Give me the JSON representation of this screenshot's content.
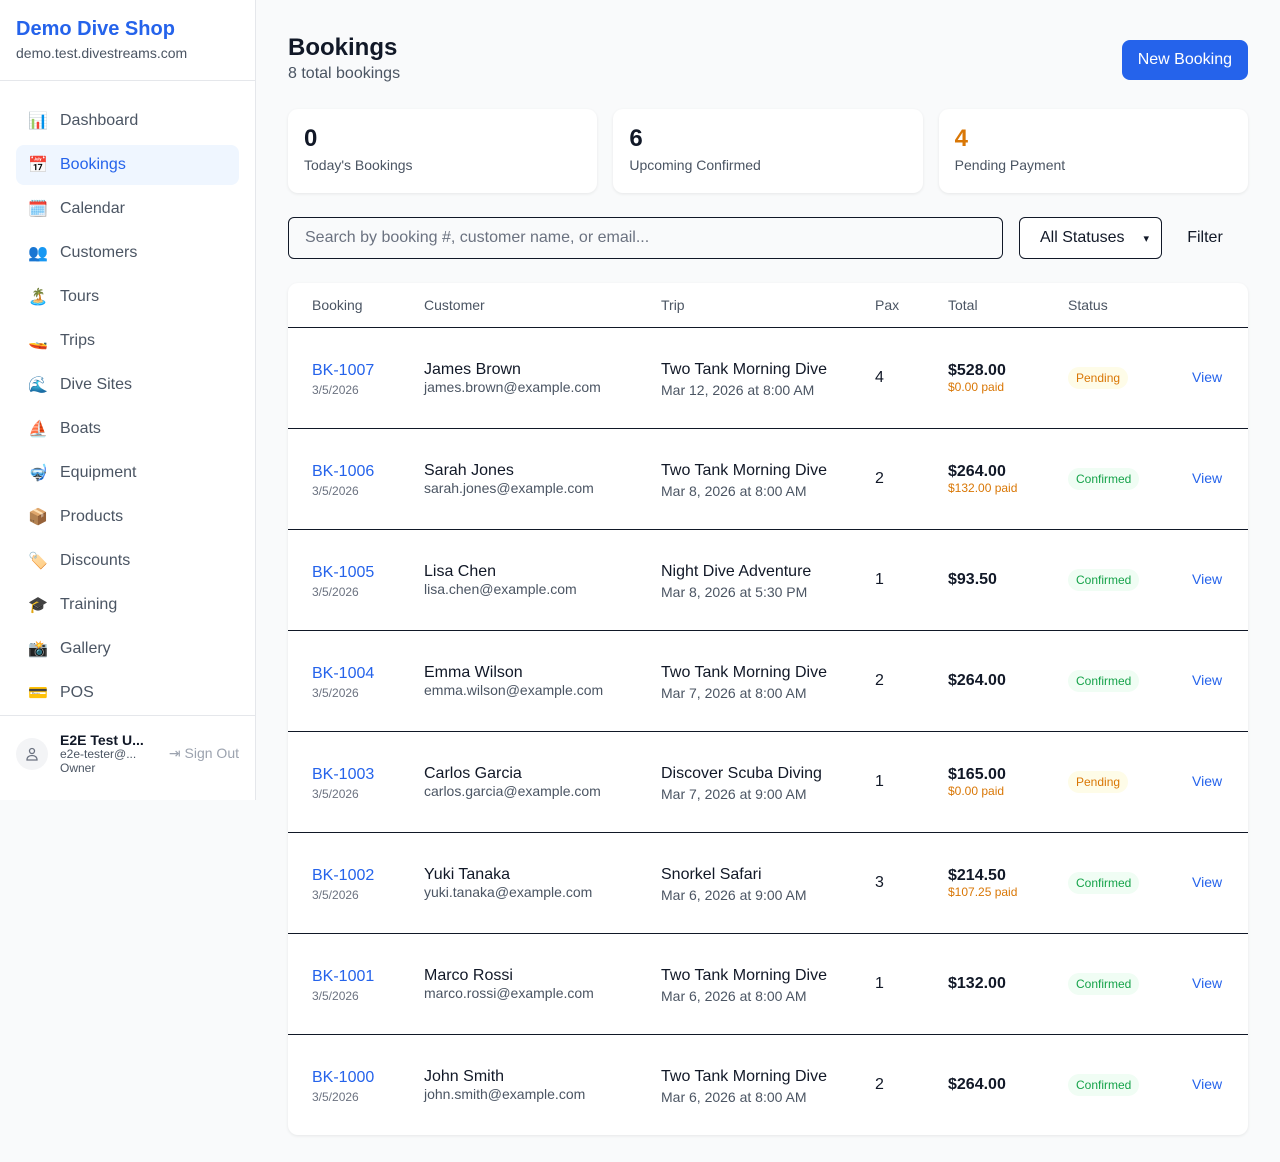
{
  "sidebar": {
    "shop_name": "Demo Dive Shop",
    "domain": "demo.test.divestreams.com",
    "items": [
      {
        "label": "Dashboard",
        "icon": "📊"
      },
      {
        "label": "Bookings",
        "icon": "📅"
      },
      {
        "label": "Calendar",
        "icon": "🗓️"
      },
      {
        "label": "Customers",
        "icon": "👥"
      },
      {
        "label": "Tours",
        "icon": "🏝️"
      },
      {
        "label": "Trips",
        "icon": "🚤"
      },
      {
        "label": "Dive Sites",
        "icon": "🌊"
      },
      {
        "label": "Boats",
        "icon": "⛵"
      },
      {
        "label": "Equipment",
        "icon": "🤿"
      },
      {
        "label": "Products",
        "icon": "📦"
      },
      {
        "label": "Discounts",
        "icon": "🏷️"
      },
      {
        "label": "Training",
        "icon": "🎓"
      },
      {
        "label": "Gallery",
        "icon": "📸"
      },
      {
        "label": "POS",
        "icon": "💳"
      }
    ],
    "active": "Bookings",
    "user": {
      "name": "E2E Test U...",
      "email": "e2e-tester@...",
      "role": "Owner",
      "sign_out": "Sign Out"
    }
  },
  "header": {
    "title": "Bookings",
    "subtitle": "8 total bookings",
    "new_button": "New Booking"
  },
  "stats": [
    {
      "value": "0",
      "label": "Today's Bookings",
      "color": "#111827"
    },
    {
      "value": "6",
      "label": "Upcoming Confirmed",
      "color": "#111827"
    },
    {
      "value": "4",
      "label": "Pending Payment",
      "color": "#d97706"
    }
  ],
  "filters": {
    "search_placeholder": "Search by booking #, customer name, or email...",
    "status": "All Statuses",
    "filter_button": "Filter"
  },
  "table": {
    "columns": [
      "Booking",
      "Customer",
      "Trip",
      "Pax",
      "Total",
      "Status",
      ""
    ],
    "rows": [
      {
        "id": "BK-1007",
        "date": "3/5/2026",
        "customer": "James Brown",
        "email": "james.brown@example.com",
        "trip": "Two Tank Morning Dive",
        "trip_date": "Mar 12, 2026 at 8:00 AM",
        "pax": "4",
        "total": "$528.00",
        "paid": "$0.00 paid",
        "status": "Pending",
        "action": "View"
      },
      {
        "id": "BK-1006",
        "date": "3/5/2026",
        "customer": "Sarah Jones",
        "email": "sarah.jones@example.com",
        "trip": "Two Tank Morning Dive",
        "trip_date": "Mar 8, 2026 at 8:00 AM",
        "pax": "2",
        "total": "$264.00",
        "paid": "$132.00 paid",
        "status": "Confirmed",
        "action": "View"
      },
      {
        "id": "BK-1005",
        "date": "3/5/2026",
        "customer": "Lisa Chen",
        "email": "lisa.chen@example.com",
        "trip": "Night Dive Adventure",
        "trip_date": "Mar 8, 2026 at 5:30 PM",
        "pax": "1",
        "total": "$93.50",
        "paid": "",
        "status": "Confirmed",
        "action": "View"
      },
      {
        "id": "BK-1004",
        "date": "3/5/2026",
        "customer": "Emma Wilson",
        "email": "emma.wilson@example.com",
        "trip": "Two Tank Morning Dive",
        "trip_date": "Mar 7, 2026 at 8:00 AM",
        "pax": "2",
        "total": "$264.00",
        "paid": "",
        "status": "Confirmed",
        "action": "View"
      },
      {
        "id": "BK-1003",
        "date": "3/5/2026",
        "customer": "Carlos Garcia",
        "email": "carlos.garcia@example.com",
        "trip": "Discover Scuba Diving",
        "trip_date": "Mar 7, 2026 at 9:00 AM",
        "pax": "1",
        "total": "$165.00",
        "paid": "$0.00 paid",
        "status": "Pending",
        "action": "View"
      },
      {
        "id": "BK-1002",
        "date": "3/5/2026",
        "customer": "Yuki Tanaka",
        "email": "yuki.tanaka@example.com",
        "trip": "Snorkel Safari",
        "trip_date": "Mar 6, 2026 at 9:00 AM",
        "pax": "3",
        "total": "$214.50",
        "paid": "$107.25 paid",
        "status": "Confirmed",
        "action": "View"
      },
      {
        "id": "BK-1001",
        "date": "3/5/2026",
        "customer": "Marco Rossi",
        "email": "marco.rossi@example.com",
        "trip": "Two Tank Morning Dive",
        "trip_date": "Mar 6, 2026 at 8:00 AM",
        "pax": "1",
        "total": "$132.00",
        "paid": "",
        "status": "Confirmed",
        "action": "View"
      },
      {
        "id": "BK-1000",
        "date": "3/5/2026",
        "customer": "John Smith",
        "email": "john.smith@example.com",
        "trip": "Two Tank Morning Dive",
        "trip_date": "Mar 6, 2026 at 8:00 AM",
        "pax": "2",
        "total": "$264.00",
        "paid": "",
        "status": "Confirmed",
        "action": "View"
      }
    ]
  }
}
